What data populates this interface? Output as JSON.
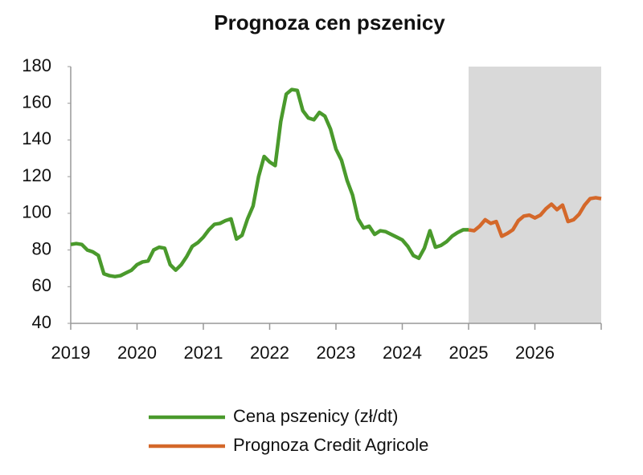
{
  "chart_data": {
    "type": "line",
    "title": "Prognoza cen pszenicy",
    "xlim": [
      2019,
      2027
    ],
    "xticks": [
      2019,
      2020,
      2021,
      2022,
      2023,
      2024,
      2025,
      2026
    ],
    "ylim": [
      40,
      180
    ],
    "yticks": [
      40,
      60,
      80,
      100,
      120,
      140,
      160,
      180
    ],
    "shade": [
      2025,
      2027
    ],
    "shade_color": "#d9d9d9",
    "series": [
      {
        "name": "Cena pszenicy (zł/dt)",
        "color": "#4a9a2c",
        "x": [
          2019,
          2019.083,
          2019.167,
          2019.25,
          2019.333,
          2019.417,
          2019.5,
          2019.583,
          2019.667,
          2019.75,
          2019.833,
          2019.917,
          2020,
          2020.083,
          2020.167,
          2020.25,
          2020.333,
          2020.417,
          2020.5,
          2020.583,
          2020.667,
          2020.75,
          2020.833,
          2020.917,
          2021,
          2021.083,
          2021.167,
          2021.25,
          2021.333,
          2021.417,
          2021.5,
          2021.583,
          2021.667,
          2021.75,
          2021.833,
          2021.917,
          2022,
          2022.083,
          2022.167,
          2022.25,
          2022.333,
          2022.417,
          2022.5,
          2022.583,
          2022.667,
          2022.75,
          2022.833,
          2022.917,
          2023,
          2023.083,
          2023.167,
          2023.25,
          2023.333,
          2023.417,
          2023.5,
          2023.583,
          2023.667,
          2023.75,
          2023.833,
          2023.917,
          2024,
          2024.083,
          2024.167,
          2024.25,
          2024.333,
          2024.417,
          2024.5,
          2024.583,
          2024.667,
          2024.75,
          2024.833,
          2024.917,
          2025
        ],
        "values": [
          83,
          83.5,
          83,
          80,
          79,
          77,
          67,
          66,
          65.5,
          66,
          67.5,
          69,
          72,
          73.5,
          74,
          80,
          81.5,
          81,
          72,
          69,
          72,
          76.5,
          82,
          84,
          87,
          91,
          94,
          94.5,
          96,
          97,
          86,
          88,
          97,
          104,
          120,
          131,
          128,
          126,
          150,
          165,
          167.5,
          167,
          156,
          152,
          151,
          155,
          153,
          146,
          135,
          129,
          118,
          110,
          97,
          92,
          93,
          88.5,
          90.5,
          90,
          88.5,
          87,
          85.5,
          82,
          77,
          75.5,
          81,
          90.5,
          81.5,
          82.5,
          84.5,
          87.5,
          89.5,
          91,
          91
        ]
      },
      {
        "name": "Prognoza Credit Agricole",
        "color": "#d4682a",
        "x": [
          2025,
          2025.083,
          2025.167,
          2025.25,
          2025.333,
          2025.417,
          2025.5,
          2025.583,
          2025.667,
          2025.75,
          2025.833,
          2025.917,
          2026,
          2026.083,
          2026.167,
          2026.25,
          2026.333,
          2026.417,
          2026.5,
          2026.583,
          2026.667,
          2026.75,
          2026.833,
          2026.917,
          2027
        ],
        "values": [
          91,
          90.5,
          93,
          96.5,
          94.5,
          95.5,
          87.5,
          89,
          91,
          96,
          98.5,
          99,
          97.5,
          99,
          102.5,
          105,
          102,
          104.5,
          95.5,
          96.5,
          99.5,
          104.5,
          108,
          108.5,
          108
        ]
      }
    ]
  }
}
